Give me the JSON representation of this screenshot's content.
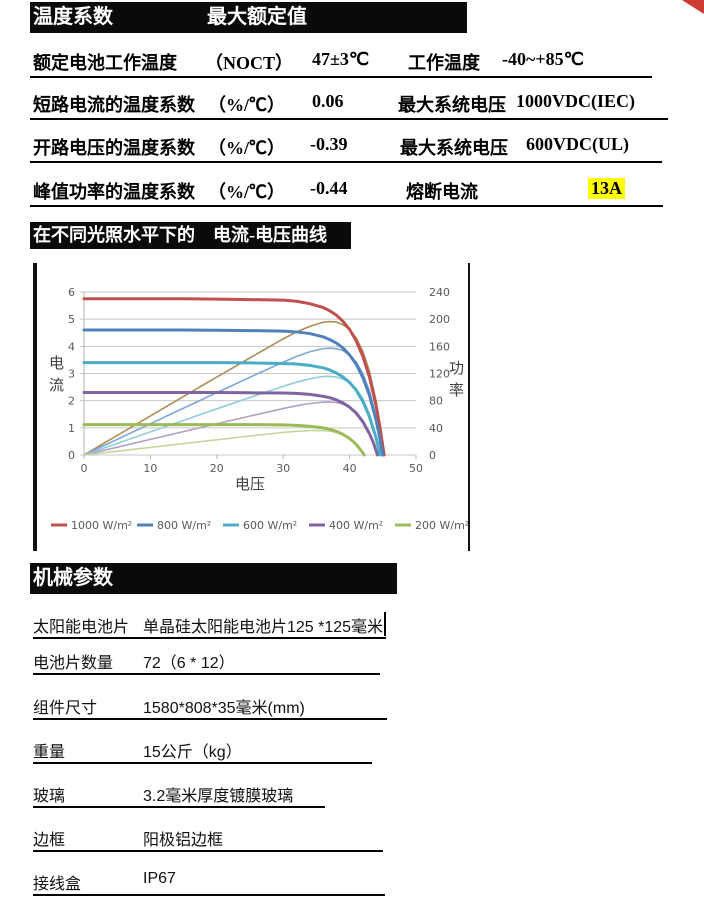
{
  "corner_color": "#cf3a32",
  "ratings_table": {
    "header_left": "温度系数",
    "header_right": "最大额定值",
    "highlight_color": "#ffff00",
    "rows": [
      {
        "label": "额定电池工作温度",
        "unit": "（NOCT）",
        "value": "47±3℃",
        "label2": "工作温度",
        "value2": "-40~+85℃"
      },
      {
        "label": "短路电流的温度系数",
        "unit": "（%/℃）",
        "value": "0.06",
        "label2": "最大系统电压",
        "value2": "1000VDC(IEC)"
      },
      {
        "label": "开路电压的温度系数",
        "unit": "（%/℃）",
        "value": "-0.39",
        "label2": "最大系统电压",
        "value2": "600VDC(UL)"
      },
      {
        "label": "峰值功率的温度系数",
        "unit": "（%/℃）",
        "value": "-0.44",
        "label2": "熔断电流",
        "value2": "13A"
      }
    ]
  },
  "chart_section": {
    "header": "在不同光照水平下的　电流-电压曲线"
  },
  "chart_data": {
    "type": "line",
    "title": "在不同光照水平下的 电流-电压曲线",
    "xlabel": "电压",
    "ylabel_left": "电流",
    "ylabel_right": "功率",
    "xlim": [
      0,
      50
    ],
    "xticks": [
      0,
      10,
      20,
      30,
      40,
      50
    ],
    "ylim_left": [
      0,
      6
    ],
    "yticks_left": [
      0,
      1,
      2,
      3,
      4,
      5,
      6
    ],
    "ylim_right": [
      0,
      240
    ],
    "yticks_right": [
      0,
      40,
      80,
      120,
      160,
      200,
      240
    ],
    "grid": true,
    "legend_position": "bottom",
    "note": "Each irradiance level has a thick I-V curve (left axis, A) and a thin P-V power curve where P = V × I (right axis, W)",
    "series": [
      {
        "name": "1000 W/m²",
        "color": "#c0504d",
        "power_color": "#b08d57",
        "isc": 5.75,
        "voc": 45.2,
        "p_max": 196,
        "iv": [
          [
            0,
            5.75
          ],
          [
            5,
            5.75
          ],
          [
            10,
            5.75
          ],
          [
            15,
            5.75
          ],
          [
            20,
            5.74
          ],
          [
            25,
            5.72
          ],
          [
            30,
            5.7
          ],
          [
            32,
            5.66
          ],
          [
            34,
            5.57
          ],
          [
            36,
            5.43
          ],
          [
            37,
            5.31
          ],
          [
            38,
            5.15
          ],
          [
            39,
            4.92
          ],
          [
            40,
            4.62
          ],
          [
            41,
            4.2
          ],
          [
            42,
            3.63
          ],
          [
            43,
            2.86
          ],
          [
            44,
            1.8
          ],
          [
            44.6,
            0.98
          ],
          [
            45.2,
            0
          ]
        ]
      },
      {
        "name": "800 W/m²",
        "color": "#4f81bd",
        "power_color": "#7da7d9",
        "isc": 4.6,
        "voc": 45.0,
        "p_max": 157,
        "iv": [
          [
            0,
            4.6
          ],
          [
            5,
            4.6
          ],
          [
            10,
            4.6
          ],
          [
            15,
            4.6
          ],
          [
            20,
            4.59
          ],
          [
            25,
            4.58
          ],
          [
            30,
            4.56
          ],
          [
            32,
            4.53
          ],
          [
            34,
            4.47
          ],
          [
            36,
            4.35
          ],
          [
            37,
            4.25
          ],
          [
            38,
            4.12
          ],
          [
            39,
            3.94
          ],
          [
            40,
            3.68
          ],
          [
            41,
            3.34
          ],
          [
            42,
            2.85
          ],
          [
            43,
            2.19
          ],
          [
            44,
            1.27
          ],
          [
            44.5,
            0.68
          ],
          [
            45,
            0
          ]
        ]
      },
      {
        "name": "600 W/m²",
        "color": "#4bacc6",
        "power_color": "#92cddc",
        "isc": 3.4,
        "voc": 44.6,
        "p_max": 116,
        "iv": [
          [
            0,
            3.4
          ],
          [
            5,
            3.4
          ],
          [
            10,
            3.4
          ],
          [
            15,
            3.4
          ],
          [
            20,
            3.4
          ],
          [
            25,
            3.39
          ],
          [
            30,
            3.37
          ],
          [
            32,
            3.35
          ],
          [
            34,
            3.3
          ],
          [
            36,
            3.21
          ],
          [
            37,
            3.13
          ],
          [
            38,
            3.02
          ],
          [
            39,
            2.87
          ],
          [
            40,
            2.67
          ],
          [
            41,
            2.38
          ],
          [
            42,
            1.97
          ],
          [
            43,
            1.4
          ],
          [
            44,
            0.62
          ],
          [
            44.6,
            0
          ]
        ]
      },
      {
        "name": "400 W/m²",
        "color": "#8064a2",
        "power_color": "#b1a0c7",
        "isc": 2.3,
        "voc": 44.2,
        "p_max": 78,
        "iv": [
          [
            0,
            2.3
          ],
          [
            5,
            2.3
          ],
          [
            10,
            2.3
          ],
          [
            15,
            2.3
          ],
          [
            20,
            2.3
          ],
          [
            25,
            2.29
          ],
          [
            30,
            2.28
          ],
          [
            32,
            2.27
          ],
          [
            34,
            2.23
          ],
          [
            36,
            2.16
          ],
          [
            37,
            2.11
          ],
          [
            38,
            2.03
          ],
          [
            39,
            1.92
          ],
          [
            40,
            1.76
          ],
          [
            41,
            1.54
          ],
          [
            42,
            1.22
          ],
          [
            43,
            0.78
          ],
          [
            43.6,
            0.44
          ],
          [
            44.2,
            0
          ]
        ]
      },
      {
        "name": "200 W/m²",
        "color": "#9bbb59",
        "power_color": "#c3d69b",
        "isc": 1.12,
        "voc": 42.2,
        "p_max": 36,
        "iv": [
          [
            0,
            1.12
          ],
          [
            5,
            1.12
          ],
          [
            10,
            1.12
          ],
          [
            15,
            1.12
          ],
          [
            20,
            1.12
          ],
          [
            25,
            1.12
          ],
          [
            30,
            1.11
          ],
          [
            32,
            1.09
          ],
          [
            34,
            1.06
          ],
          [
            36,
            1.0
          ],
          [
            37,
            0.95
          ],
          [
            38,
            0.87
          ],
          [
            39,
            0.76
          ],
          [
            40,
            0.61
          ],
          [
            41,
            0.39
          ],
          [
            42,
            0.08
          ],
          [
            42.2,
            0
          ]
        ]
      }
    ]
  },
  "mech_table": {
    "header": "机械参数",
    "rows": [
      {
        "label": "太阳能电池片",
        "value": "单晶硅太阳能电池片125 *125毫米"
      },
      {
        "label": "电池片数量",
        "value": "72（6 * 12）"
      },
      {
        "label": "组件尺寸",
        "value": "1580*808*35毫米(mm)"
      },
      {
        "label": "重量",
        "value": "15公斤（kg）"
      },
      {
        "label": "玻璃",
        "value": "3.2毫米厚度镀膜玻璃"
      },
      {
        "label": "边框",
        "value": "阳极铝边框"
      },
      {
        "label": "接线盒",
        "value": "IP67"
      }
    ]
  }
}
